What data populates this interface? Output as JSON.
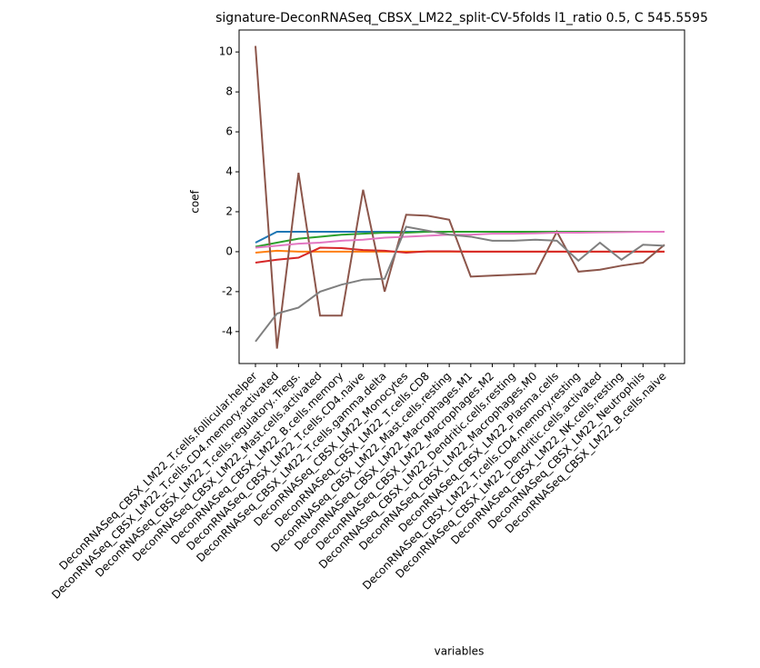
{
  "chart_data": {
    "type": "line",
    "title": "signature-DeconRNASeq_CBSX_LM22_split-CV-5folds l1_ratio 0.5, C 545.5595",
    "x_label": "variables",
    "y_label": "coef",
    "categories": [
      "DeconRNASeq_CBSX_LM22_T.cells.follicular.helper",
      "DeconRNASeq_CBSX_LM22_T.cells.CD4.memory.activated",
      "DeconRNASeq_CBSX_LM22_T.cells.regulatory..Tregs.",
      "DeconRNASeq_CBSX_LM22_Mast.cells.activated",
      "DeconRNASeq_CBSX_LM22_B.cells.memory",
      "DeconRNASeq_CBSX_LM22_T.cells.CD4.naive",
      "DeconRNASeq_CBSX_LM22_T.cells.gamma.delta",
      "DeconRNASeq_CBSX_LM22_Monocytes",
      "DeconRNASeq_CBSX_LM22_T.cells.CD8",
      "DeconRNASeq_CBSX_LM22_Mast.cells.resting",
      "DeconRNASeq_CBSX_LM22_Macrophages.M1",
      "DeconRNASeq_CBSX_LM22_Macrophages.M2",
      "DeconRNASeq_CBSX_LM22_Dendritic.cells.resting",
      "DeconRNASeq_CBSX_LM22_Macrophages.M0",
      "DeconRNASeq_CBSX_LM22_Plasma.cells",
      "DeconRNASeq_CBSX_LM22_T.cells.CD4.memory.resting",
      "DeconRNASeq_CBSX_LM22_Dendritic.cells.activated",
      "DeconRNASeq_CBSX_LM22_NK.cells.resting",
      "DeconRNASeq_CBSX_LM22_Neutrophils",
      "DeconRNASeq_CBSX_LM22_B.cells.naive"
    ],
    "series": [
      {
        "color": "#1f77b4",
        "values": [
          0.45,
          1.0,
          1.0,
          1.0,
          1.0,
          1.0,
          1.0,
          1.0,
          1.0,
          1.0,
          1.0,
          1.0,
          1.0,
          1.0,
          1.0,
          1.0,
          1.0,
          1.0,
          1.0,
          1.0
        ]
      },
      {
        "color": "#ff7f0e",
        "values": [
          -0.05,
          0.05,
          0,
          0,
          0,
          0,
          0,
          0,
          0,
          0,
          0,
          0,
          0,
          0,
          0,
          0,
          0,
          0,
          0,
          0
        ]
      },
      {
        "color": "#2ca02c",
        "values": [
          0.25,
          0.45,
          0.65,
          0.75,
          0.85,
          0.9,
          0.95,
          0.95,
          1.0,
          1.0,
          1.0,
          1.0,
          1.0,
          1.0,
          1.0,
          1.0,
          1.0,
          1.0,
          1.0,
          1.0
        ]
      },
      {
        "color": "#d62728",
        "values": [
          -0.55,
          -0.4,
          -0.3,
          0.2,
          0.18,
          0.08,
          0.05,
          -0.05,
          0.02,
          0.02,
          0,
          0,
          0,
          0,
          0,
          0,
          0,
          0,
          0,
          0
        ]
      },
      {
        "color": "#8c564b",
        "values": [
          10.3,
          -4.85,
          3.95,
          -3.2,
          -3.2,
          3.1,
          -2.0,
          1.85,
          1.8,
          1.6,
          -1.25,
          -1.2,
          -1.15,
          -1.1,
          1.0,
          -1.0,
          -0.9,
          -0.7,
          -0.55,
          0.35
        ]
      },
      {
        "color": "#e377c2",
        "values": [
          0.2,
          0.3,
          0.4,
          0.45,
          0.55,
          0.6,
          0.7,
          0.75,
          0.8,
          0.85,
          0.85,
          0.9,
          0.9,
          0.92,
          0.95,
          0.95,
          0.97,
          0.98,
          1.0,
          1.0
        ]
      },
      {
        "color": "#7f7f7f",
        "values": [
          -4.5,
          -3.1,
          -2.8,
          -2.0,
          -1.65,
          -1.4,
          -1.35,
          1.25,
          1.05,
          0.85,
          0.75,
          0.55,
          0.55,
          0.6,
          0.55,
          -0.45,
          0.45,
          -0.4,
          0.35,
          0.3
        ]
      }
    ],
    "ylim": [
      -5.6,
      11.1
    ],
    "yticks": [
      -4,
      -2,
      0,
      2,
      4,
      6,
      8,
      10
    ]
  }
}
